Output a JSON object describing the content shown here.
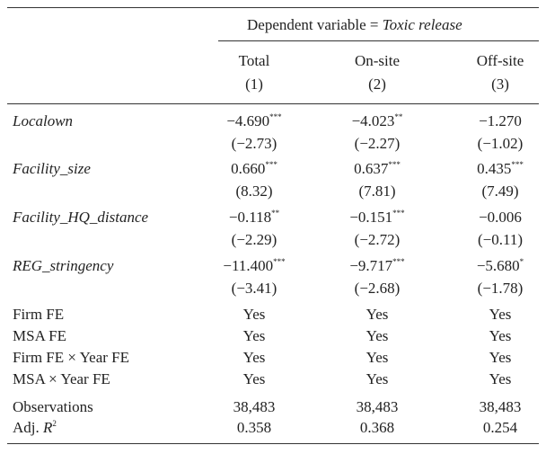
{
  "header": {
    "dependent_label": "Dependent variable =",
    "dependent_name": "Toxic release"
  },
  "columns": [
    {
      "name": "Total",
      "number": "(1)"
    },
    {
      "name": "On-site",
      "number": "(2)"
    },
    {
      "name": "Off-site",
      "number": "(3)"
    }
  ],
  "variables": [
    {
      "name": "Localown",
      "cells": [
        {
          "coef": "−4.690",
          "stars": "***",
          "t": "(−2.73)"
        },
        {
          "coef": "−4.023",
          "stars": "**",
          "t": "(−2.27)"
        },
        {
          "coef": "−1.270",
          "t": "(−1.02)"
        }
      ]
    },
    {
      "name": "Facility_size",
      "cells": [
        {
          "coef": "0.660",
          "stars": "***",
          "t": "(8.32)"
        },
        {
          "coef": "0.637",
          "stars": "***",
          "t": "(7.81)"
        },
        {
          "coef": "0.435",
          "stars": "***",
          "t": "(7.49)"
        }
      ]
    },
    {
      "name": "Facility_HQ_distance",
      "cells": [
        {
          "coef": "−0.118",
          "stars": "**",
          "t": "(−2.29)"
        },
        {
          "coef": "−0.151",
          "stars": "***",
          "t": "(−2.72)"
        },
        {
          "coef": "−0.006",
          "t": "(−0.11)"
        }
      ]
    },
    {
      "name": "REG_stringency",
      "cells": [
        {
          "coef": "−11.400",
          "stars": "***",
          "t": "(−3.41)"
        },
        {
          "coef": "−9.717",
          "stars": "***",
          "t": "(−2.68)"
        },
        {
          "coef": "−5.680",
          "stars": "*",
          "t": "(−1.78)"
        }
      ]
    }
  ],
  "fixed_effects": [
    {
      "name": "Firm FE",
      "values": [
        "Yes",
        "Yes",
        "Yes"
      ]
    },
    {
      "name": "MSA FE",
      "values": [
        "Yes",
        "Yes",
        "Yes"
      ]
    },
    {
      "name": "Firm FE × Year FE",
      "values": [
        "Yes",
        "Yes",
        "Yes"
      ]
    },
    {
      "name": "MSA × Year FE",
      "values": [
        "Yes",
        "Yes",
        "Yes"
      ]
    }
  ],
  "stats": [
    {
      "name": "Observations",
      "values": [
        "38,483",
        "38,483",
        "38,483"
      ]
    },
    {
      "name": "Adj.",
      "name_italic": "R",
      "name_sup": "2",
      "values": [
        "0.358",
        "0.368",
        "0.254"
      ]
    }
  ]
}
